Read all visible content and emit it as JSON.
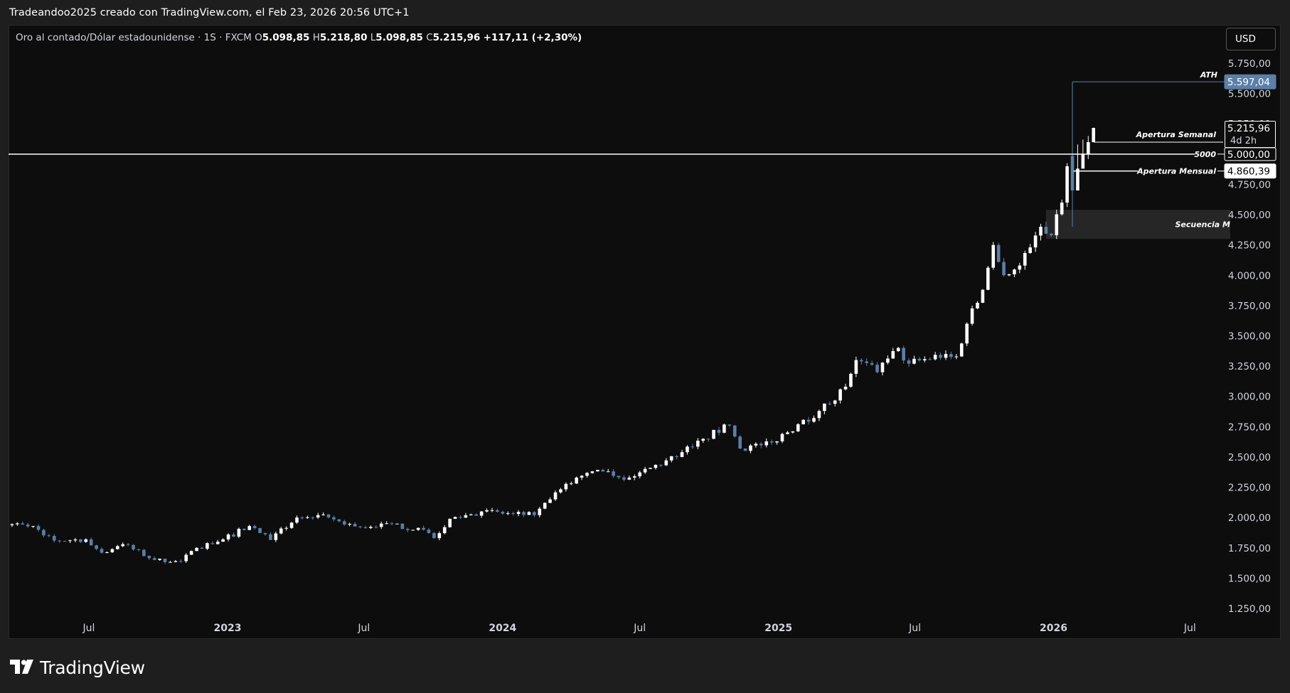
{
  "header": {
    "caption": "Tradeandoo2025 creado con TradingView.com, el Feb 23, 2026 20:56 UTC+1"
  },
  "legend": {
    "symbol": "Oro al contado/Dólar estadounidense · 1S · FXCM",
    "o_label": "O",
    "o_value": "5.098,85",
    "h_label": "H",
    "h_value": "5.218,80",
    "l_label": "L",
    "l_value": "5.098,85",
    "c_label": "C",
    "c_value": "5.215,96",
    "change": "+117,11 (+2,30%)"
  },
  "currency_button": "USD",
  "footer": {
    "brand": "TradingView"
  },
  "colors": {
    "background": "#0d0d0d",
    "page": "#1e1e1e",
    "up_candle": "#ffffff",
    "down_candle": "#5b7fa8",
    "ath_line": "#5b7fa8",
    "text": "#d1d4dc"
  },
  "chart_data": {
    "type": "candlestick",
    "timeframe": "1S",
    "price_axis": {
      "ticks": [
        "5.750,00",
        "5.500,00",
        "5.250,00",
        "5.000,00",
        "4.750,00",
        "4.500,00",
        "4.250,00",
        "4.000,00",
        "3.750,00",
        "3.500,00",
        "3.250,00",
        "3.000,00",
        "2.750,00",
        "2.500,00",
        "2.250,00",
        "2.000,00",
        "1.750,00",
        "1.500,00",
        "1.250,00"
      ],
      "range": [
        1100,
        5880
      ]
    },
    "time_axis": {
      "ticks": [
        "Jul",
        "2023",
        "Jul",
        "2024",
        "Jul",
        "2025",
        "Jul",
        "2026",
        "Jul"
      ]
    },
    "anchors": [
      {
        "date": "2022-03-07",
        "close": 1950
      },
      {
        "date": "2022-04-18",
        "close": 1930
      },
      {
        "date": "2022-05-16",
        "close": 1810
      },
      {
        "date": "2022-06-27",
        "close": 1820
      },
      {
        "date": "2022-07-18",
        "close": 1710
      },
      {
        "date": "2022-08-15",
        "close": 1780
      },
      {
        "date": "2022-09-26",
        "close": 1650
      },
      {
        "date": "2022-10-31",
        "close": 1640
      },
      {
        "date": "2022-11-21",
        "close": 1750
      },
      {
        "date": "2022-12-26",
        "close": 1820
      },
      {
        "date": "2023-01-30",
        "close": 1930
      },
      {
        "date": "2023-02-27",
        "close": 1815
      },
      {
        "date": "2023-04-03",
        "close": 2000
      },
      {
        "date": "2023-05-01",
        "close": 2020
      },
      {
        "date": "2023-06-26",
        "close": 1920
      },
      {
        "date": "2023-07-24",
        "close": 1950
      },
      {
        "date": "2023-09-18",
        "close": 1900
      },
      {
        "date": "2023-10-02",
        "close": 1830
      },
      {
        "date": "2023-10-23",
        "close": 1990
      },
      {
        "date": "2023-12-04",
        "close": 2050
      },
      {
        "date": "2024-01-15",
        "close": 2030
      },
      {
        "date": "2024-02-12",
        "close": 2020
      },
      {
        "date": "2024-03-04",
        "close": 2150
      },
      {
        "date": "2024-04-08",
        "close": 2330
      },
      {
        "date": "2024-05-13",
        "close": 2380
      },
      {
        "date": "2024-06-17",
        "close": 2330
      },
      {
        "date": "2024-07-15",
        "close": 2410
      },
      {
        "date": "2024-08-19",
        "close": 2500
      },
      {
        "date": "2024-09-23",
        "close": 2650
      },
      {
        "date": "2024-10-28",
        "close": 2760
      },
      {
        "date": "2024-11-11",
        "close": 2570
      },
      {
        "date": "2024-12-23",
        "close": 2620
      },
      {
        "date": "2025-01-27",
        "close": 2770
      },
      {
        "date": "2025-02-24",
        "close": 2880
      },
      {
        "date": "2025-03-31",
        "close": 3080
      },
      {
        "date": "2025-04-14",
        "close": 3300
      },
      {
        "date": "2025-05-12",
        "close": 3200
      },
      {
        "date": "2025-06-09",
        "close": 3400
      },
      {
        "date": "2025-06-23",
        "close": 3270
      },
      {
        "date": "2025-08-11",
        "close": 3350
      },
      {
        "date": "2025-08-25",
        "close": 3330
      },
      {
        "date": "2025-09-08",
        "close": 3600
      },
      {
        "date": "2025-09-29",
        "close": 3880
      },
      {
        "date": "2025-10-13",
        "close": 4250
      },
      {
        "date": "2025-10-20",
        "close": 4110
      },
      {
        "date": "2025-10-27",
        "close": 4000
      },
      {
        "date": "2025-11-17",
        "close": 4080
      },
      {
        "date": "2025-12-01",
        "close": 4230
      },
      {
        "date": "2025-12-15",
        "close": 4400
      },
      {
        "date": "2025-12-29",
        "close": 4330
      },
      {
        "date": "2026-01-12",
        "close": 4600
      },
      {
        "date": "2026-01-19",
        "close": 4900
      },
      {
        "date": "2026-01-26",
        "close": 4950
      },
      {
        "date": "2026-02-02",
        "close": 4870
      },
      {
        "date": "2026-02-09",
        "close": 5000
      },
      {
        "date": "2026-02-16",
        "close": 5099
      },
      {
        "date": "2026-02-23",
        "close": 5215.96
      }
    ],
    "annotations": {
      "ath": {
        "label": "ATH",
        "price": 5597.04,
        "price_label": "5.597,04"
      },
      "level_5000": {
        "label": "5000",
        "price": 5000,
        "price_label": "5.000,00"
      },
      "weekly_open": {
        "label": "Apertura Semanal",
        "price": 5098.85
      },
      "monthly_open": {
        "label": "Apertura Mensual",
        "price": 4860.39,
        "price_label": "4.860,39"
      },
      "last_price": {
        "price": 5215.96,
        "price_label": "5.215,96",
        "countdown": "4d 2h"
      },
      "zone": {
        "label": "Secuencia M",
        "from": 4300,
        "to": 4540
      }
    }
  }
}
